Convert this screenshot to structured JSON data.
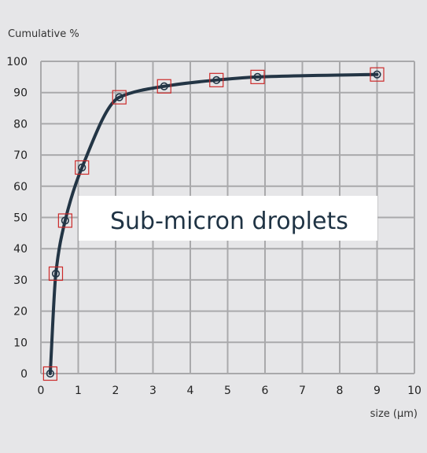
{
  "chart_data": {
    "type": "line",
    "title": "",
    "xlabel": "size (µm)",
    "ylabel": "Cumulative %",
    "xlim": [
      0,
      10
    ],
    "ylim": [
      0,
      100
    ],
    "xticks": [
      0,
      1,
      2,
      3,
      4,
      5,
      6,
      7,
      8,
      9,
      10
    ],
    "yticks": [
      0,
      10,
      20,
      30,
      40,
      50,
      60,
      70,
      80,
      90,
      100
    ],
    "grid": true,
    "annotation": "Sub-micron droplets",
    "series": [
      {
        "points": [
          {
            "x": 0.25,
            "y": 0
          },
          {
            "x": 0.4,
            "y": 32
          },
          {
            "x": 0.65,
            "y": 49
          },
          {
            "x": 1.1,
            "y": 66
          },
          {
            "x": 2.1,
            "y": 88.5
          },
          {
            "x": 3.3,
            "y": 92
          },
          {
            "x": 4.7,
            "y": 94
          },
          {
            "x": 5.8,
            "y": 95
          },
          {
            "x": 9.0,
            "y": 95.8
          }
        ],
        "color": "#233545",
        "marker": "circle-in-square",
        "marker_color": "#cc2a2a"
      }
    ],
    "colors": {
      "background": "#e6e6e8",
      "grid": "#a9a9ab",
      "line": "#233545",
      "marker_box": "#cc2a2a",
      "annotation_box": "#ffffff"
    }
  }
}
